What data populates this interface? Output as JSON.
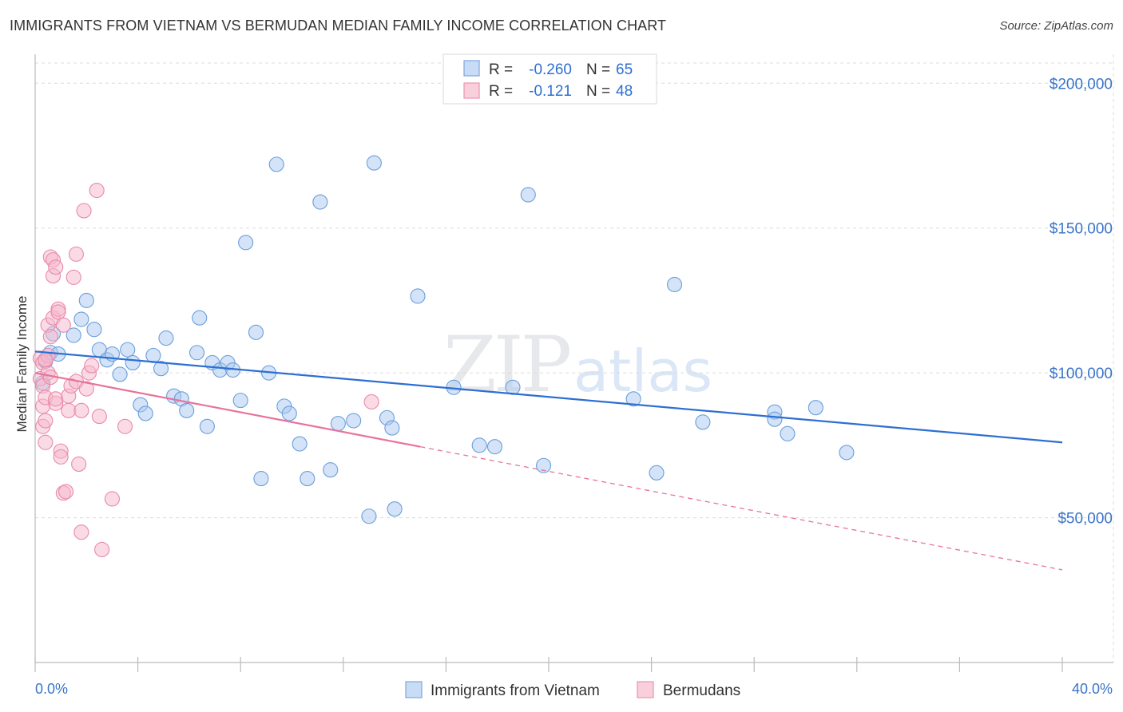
{
  "header": {
    "title": "IMMIGRANTS FROM VIETNAM VS BERMUDAN MEDIAN FAMILY INCOME CORRELATION CHART",
    "source": "Source: ZipAtlas.com"
  },
  "watermark": {
    "zip": "ZIP",
    "atlas": "atlas"
  },
  "stats": [
    {
      "r_label": "R =",
      "r_value": "-0.260",
      "n_label": "N =",
      "n_value": "65",
      "color": "#a9c8ef"
    },
    {
      "r_label": "R =",
      "r_value": "-0.121",
      "n_label": "N =",
      "n_value": "48",
      "color": "#f6b8cb"
    }
  ],
  "chart_data": {
    "type": "scatter",
    "ylabel": "Median Family Income",
    "xlim": [
      0,
      40
    ],
    "ylim": [
      0,
      210000
    ],
    "x_tick_labels": [
      "0.0%",
      "40.0%"
    ],
    "y_ticks": [
      {
        "value": 50000,
        "label": "$50,000"
      },
      {
        "value": 100000,
        "label": "$100,000"
      },
      {
        "value": 150000,
        "label": "$150,000"
      },
      {
        "value": 200000,
        "label": "$200,000"
      }
    ],
    "grid": "horizontal dashed",
    "legend_position": "bottom-center",
    "series": [
      {
        "name": "Immigrants from Vietnam",
        "color": "#a9c8ef",
        "stroke": "#6a9fdb",
        "trend_color": "#2d6fd2",
        "trend": {
          "x0": 0.0,
          "y0": 107400,
          "x1": 40.0,
          "y1": 76000,
          "solid_until": 40.0
        },
        "points": [
          [
            0.4,
            104000
          ],
          [
            0.6,
            107000
          ],
          [
            0.7,
            113500
          ],
          [
            0.9,
            106500
          ],
          [
            1.5,
            113000
          ],
          [
            1.8,
            118500
          ],
          [
            2.0,
            125000
          ],
          [
            2.3,
            115000
          ],
          [
            2.5,
            108000
          ],
          [
            2.8,
            104500
          ],
          [
            3.0,
            106500
          ],
          [
            3.3,
            99500
          ],
          [
            3.6,
            108000
          ],
          [
            3.8,
            103500
          ],
          [
            4.1,
            89000
          ],
          [
            4.3,
            86000
          ],
          [
            4.6,
            106000
          ],
          [
            4.9,
            101500
          ],
          [
            5.1,
            112000
          ],
          [
            5.4,
            92000
          ],
          [
            5.7,
            91000
          ],
          [
            5.9,
            87000
          ],
          [
            6.3,
            107000
          ],
          [
            6.4,
            119000
          ],
          [
            6.7,
            81500
          ],
          [
            6.9,
            103500
          ],
          [
            7.2,
            101000
          ],
          [
            7.5,
            103500
          ],
          [
            7.7,
            101000
          ],
          [
            8.0,
            90500
          ],
          [
            8.2,
            145000
          ],
          [
            8.6,
            114000
          ],
          [
            8.8,
            63500
          ],
          [
            9.1,
            100000
          ],
          [
            9.4,
            172000
          ],
          [
            9.7,
            88500
          ],
          [
            9.9,
            86000
          ],
          [
            10.3,
            75500
          ],
          [
            10.6,
            63500
          ],
          [
            11.1,
            159000
          ],
          [
            11.5,
            66500
          ],
          [
            11.8,
            82500
          ],
          [
            12.4,
            83500
          ],
          [
            13.0,
            50500
          ],
          [
            13.2,
            172500
          ],
          [
            13.7,
            84500
          ],
          [
            13.9,
            81000
          ],
          [
            14.0,
            53000
          ],
          [
            14.9,
            126500
          ],
          [
            16.3,
            95000
          ],
          [
            17.3,
            75000
          ],
          [
            17.9,
            74500
          ],
          [
            18.6,
            95000
          ],
          [
            19.2,
            161500
          ],
          [
            19.8,
            68000
          ],
          [
            23.3,
            91000
          ],
          [
            24.2,
            65500
          ],
          [
            24.9,
            130500
          ],
          [
            26.0,
            83000
          ],
          [
            28.8,
            86500
          ],
          [
            28.8,
            84000
          ],
          [
            29.3,
            79000
          ],
          [
            30.4,
            88000
          ],
          [
            31.6,
            72500
          ],
          [
            0.3,
            96500
          ]
        ]
      },
      {
        "name": "Bermudans",
        "color": "#f6b8cb",
        "stroke": "#e98aa8",
        "trend_color": "#e8739a",
        "trend": {
          "x0": 0.0,
          "y0": 100000,
          "x1": 40.0,
          "y1": 32000,
          "solid_until": 15.0
        },
        "points": [
          [
            0.2,
            105000
          ],
          [
            0.2,
            98000
          ],
          [
            0.3,
            95500
          ],
          [
            0.3,
            103500
          ],
          [
            0.3,
            88500
          ],
          [
            0.3,
            81500
          ],
          [
            0.4,
            83500
          ],
          [
            0.4,
            76000
          ],
          [
            0.4,
            91500
          ],
          [
            0.5,
            106000
          ],
          [
            0.5,
            100000
          ],
          [
            0.5,
            116500
          ],
          [
            0.6,
            112500
          ],
          [
            0.6,
            140000
          ],
          [
            0.7,
            139000
          ],
          [
            0.7,
            119000
          ],
          [
            0.7,
            133500
          ],
          [
            0.8,
            136500
          ],
          [
            0.8,
            89500
          ],
          [
            0.8,
            91000
          ],
          [
            0.9,
            122000
          ],
          [
            0.9,
            121000
          ],
          [
            1.0,
            73000
          ],
          [
            1.0,
            71000
          ],
          [
            1.1,
            58500
          ],
          [
            1.1,
            116500
          ],
          [
            1.2,
            59000
          ],
          [
            1.3,
            92000
          ],
          [
            1.3,
            87000
          ],
          [
            1.4,
            95500
          ],
          [
            1.5,
            133000
          ],
          [
            1.6,
            141000
          ],
          [
            1.6,
            97000
          ],
          [
            1.7,
            68500
          ],
          [
            1.8,
            45000
          ],
          [
            1.8,
            87000
          ],
          [
            1.9,
            156000
          ],
          [
            2.0,
            94500
          ],
          [
            2.1,
            100000
          ],
          [
            2.2,
            102500
          ],
          [
            2.4,
            163000
          ],
          [
            2.5,
            85000
          ],
          [
            2.6,
            39000
          ],
          [
            3.0,
            56500
          ],
          [
            3.5,
            81500
          ],
          [
            13.1,
            90000
          ],
          [
            0.4,
            104500
          ],
          [
            0.6,
            98500
          ]
        ]
      }
    ]
  }
}
